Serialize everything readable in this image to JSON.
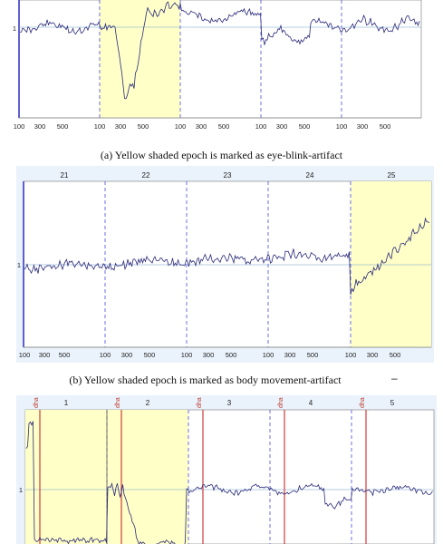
{
  "captions": {
    "a": "(a) Yellow shaded epoch is marked as eye-blink-artifact",
    "b": "(b) Yellow shaded epoch is marked as body movement-artifact",
    "b_trailing": "–"
  },
  "panel_a": {
    "x_ticks": [
      "100",
      "300",
      "500",
      "100",
      "300",
      "500",
      "100",
      "300",
      "500",
      "100",
      "300",
      "500",
      "100",
      "300",
      "500"
    ],
    "y_label": "1",
    "shaded_epoch": "eye-blink-artifact",
    "colors": {
      "shade": "#ffffc8",
      "boundary": "#4b4bdb",
      "signal": "#2a2a7a",
      "baseline": "#6fa0c8"
    }
  },
  "panel_b": {
    "epoch_numbers": [
      "21",
      "22",
      "23",
      "24",
      "25"
    ],
    "x_ticks": [
      "100",
      "300",
      "500",
      "100",
      "300",
      "500",
      "100",
      "300",
      "500",
      "100",
      "300",
      "500",
      "100",
      "300",
      "500"
    ],
    "y_label": "1",
    "shaded_epoch": "body movement-artifact"
  },
  "panel_c": {
    "epoch_numbers": [
      "1",
      "2",
      "3",
      "4",
      "5"
    ],
    "event_labels": [
      "dha",
      "dha",
      "dha",
      "dha",
      "dha"
    ],
    "y_label": "1",
    "colors": {
      "event": "#d03a3a"
    }
  }
}
